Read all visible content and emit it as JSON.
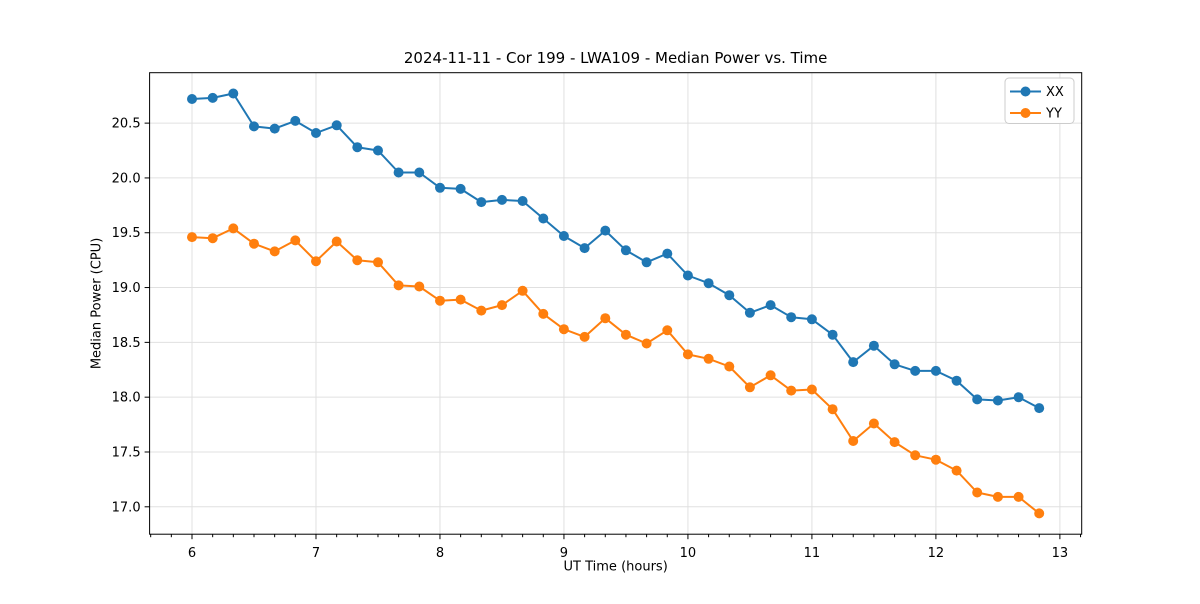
{
  "chart_data": {
    "type": "line",
    "title": "2024-11-11 - Cor 199 - LWA109 - Median Power vs. Time",
    "xlabel": "UT Time (hours)",
    "ylabel": "Median Power (CPU)",
    "xlim": [
      5.658,
      13.176
    ],
    "ylim": [
      16.75,
      20.96
    ],
    "xticks": [
      6,
      7,
      8,
      9,
      10,
      11,
      12,
      13
    ],
    "yticks": [
      17.0,
      17.5,
      18.0,
      18.5,
      19.0,
      19.5,
      20.0,
      20.5
    ],
    "x_minor_tick_step_hours": 0.1666667,
    "grid": true,
    "legend_position": "upper right",
    "marker": "circle",
    "x": [
      6.0,
      6.1667,
      6.3333,
      6.5,
      6.6667,
      6.8333,
      7.0,
      7.1667,
      7.3333,
      7.5,
      7.6667,
      7.8333,
      8.0,
      8.1667,
      8.3333,
      8.5,
      8.6667,
      8.8333,
      9.0,
      9.1667,
      9.3333,
      9.5,
      9.6667,
      9.8333,
      10.0,
      10.1667,
      10.3333,
      10.5,
      10.6667,
      10.8333,
      11.0,
      11.1667,
      11.3333,
      11.5,
      11.6667,
      11.8333,
      12.0,
      12.1667,
      12.3333,
      12.5,
      12.6667,
      12.8333
    ],
    "series": [
      {
        "name": "XX",
        "color": "#1f77b4",
        "values": [
          20.72,
          20.73,
          20.77,
          20.47,
          20.45,
          20.52,
          20.41,
          20.48,
          20.28,
          20.25,
          20.05,
          20.05,
          19.91,
          19.9,
          19.78,
          19.8,
          19.79,
          19.63,
          19.47,
          19.36,
          19.52,
          19.34,
          19.23,
          19.31,
          19.11,
          19.04,
          18.93,
          18.77,
          18.84,
          18.73,
          18.71,
          18.57,
          18.32,
          18.47,
          18.3,
          18.24,
          18.24,
          18.15,
          17.98,
          17.97,
          18.0,
          17.9
        ]
      },
      {
        "name": "YY",
        "color": "#ff7f0e",
        "values": [
          19.46,
          19.45,
          19.54,
          19.4,
          19.33,
          19.43,
          19.24,
          19.42,
          19.25,
          19.23,
          19.02,
          19.01,
          18.88,
          18.89,
          18.79,
          18.84,
          18.97,
          18.76,
          18.62,
          18.55,
          18.72,
          18.57,
          18.49,
          18.61,
          18.39,
          18.35,
          18.28,
          18.09,
          18.2,
          18.06,
          18.07,
          17.89,
          17.6,
          17.76,
          17.59,
          17.47,
          17.43,
          17.33,
          17.13,
          17.09,
          17.09,
          16.94
        ]
      }
    ]
  }
}
